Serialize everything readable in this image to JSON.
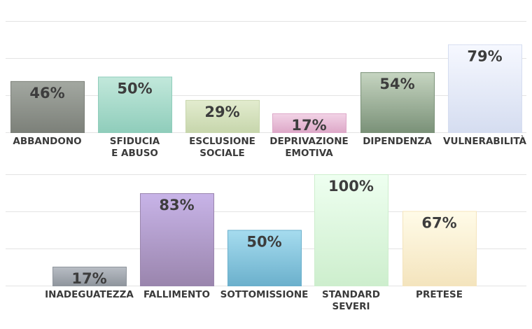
{
  "chart_data": [
    {
      "type": "bar",
      "categories": [
        [
          "ABBANDONO"
        ],
        [
          "SFIDUCIA",
          "E ABUSO"
        ],
        [
          "ESCLUSIONE",
          "SOCIALE"
        ],
        [
          "DEPRIVAZIONE",
          "EMOTIVA"
        ],
        [
          "DIPENDENZA"
        ],
        [
          "VULNERABILITÀ"
        ]
      ],
      "values": [
        46,
        50,
        29,
        17,
        54,
        79
      ],
      "labels": [
        "46%",
        "50%",
        "29%",
        "17%",
        "54%",
        "79%"
      ],
      "ylim": [
        0,
        100
      ],
      "grid": true,
      "colors": [
        [
          "#a3a8a1",
          "#7c8079"
        ],
        [
          "#c2e8db",
          "#8fcdbb"
        ],
        [
          "#e3eccf",
          "#c7d6ac"
        ],
        [
          "#f2d3e6",
          "#dda8c8"
        ],
        [
          "#c6d5c1",
          "#7a9178"
        ],
        [
          "#f6f8ff",
          "#d5ddf0"
        ]
      ]
    },
    {
      "type": "bar",
      "categories": [
        [
          "INADEGUATEZZA"
        ],
        [
          "FALLIMENTO"
        ],
        [
          "SOTTOMISSIONE"
        ],
        [
          "STANDARD",
          "SEVERI"
        ],
        [
          "PRETESE"
        ]
      ],
      "values": [
        17,
        83,
        50,
        100,
        67
      ],
      "labels": [
        "17%",
        "83%",
        "50%",
        "100%",
        "67%"
      ],
      "ylim": [
        0,
        100
      ],
      "grid": true,
      "colors": [
        [
          "#b8bdc4",
          "#8f959d"
        ],
        [
          "#c8b4e8",
          "#9a85ad"
        ],
        [
          "#a6dcef",
          "#6bb0cc"
        ],
        [
          "#eefff0",
          "#cdeecd"
        ],
        [
          "#fffbe8",
          "#f4e4bd"
        ]
      ]
    }
  ]
}
